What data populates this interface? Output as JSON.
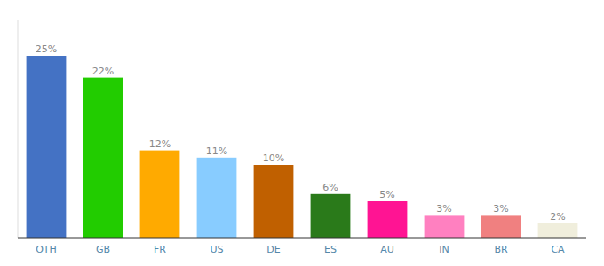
{
  "chart_data": {
    "type": "bar",
    "categories": [
      "OTH",
      "GB",
      "FR",
      "US",
      "DE",
      "ES",
      "AU",
      "IN",
      "BR",
      "CA"
    ],
    "values": [
      25,
      22,
      12,
      11,
      10,
      6,
      5,
      3,
      3,
      2
    ],
    "value_labels": [
      "25%",
      "22%",
      "12%",
      "11%",
      "10%",
      "6%",
      "5%",
      "3%",
      "3%",
      "2%"
    ],
    "colors": [
      "#4472c4",
      "#22cc00",
      "#ffaa00",
      "#88ccff",
      "#c06000",
      "#2a7a1a",
      "#ff1493",
      "#ff80c0",
      "#f08080",
      "#f0eedc"
    ],
    "ylim": [
      0,
      30
    ],
    "data_labels": true,
    "tick_labels": "x",
    "grid": false
  }
}
